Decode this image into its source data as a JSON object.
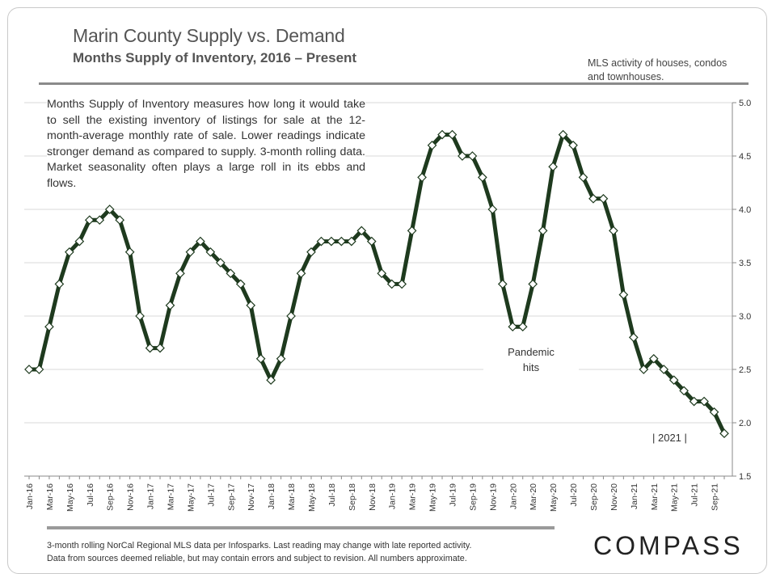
{
  "header": {
    "title": "Marin County Supply vs. Demand",
    "subtitle": "Months Supply of Inventory, 2016 – Present"
  },
  "mls_note": "MLS activity of houses, condos and townhouses.",
  "description": "Months Supply of Inventory measures how long it would take to sell the existing inventory of listings for sale at the 12-month-average monthly rate of sale. Lower readings indicate stronger demand as compared to supply. 3-month rolling data. Market seasonality often plays a large roll in its ebbs and flows.",
  "annotations": {
    "pandemic_line1": "Pandemic",
    "pandemic_line2": "hits",
    "year_marker": "|  2021  |"
  },
  "footnote": {
    "line1": "3-month rolling NorCal Regional MLS data per Infosparks. Last reading may change with late reported activity.",
    "line2": "Data from sources deemed reliable, but may contain errors and subject to revision. All numbers approximate."
  },
  "logo_text": "COMPASS",
  "colors": {
    "line": "#1e3a1e",
    "marker_fill": "#ffffff",
    "grid": "#d9d9d9",
    "text": "#333333"
  },
  "chart_data": {
    "type": "line",
    "title": "Marin County Supply vs. Demand",
    "subtitle": "Months Supply of Inventory, 2016 – Present",
    "ylim": [
      1.5,
      5.0
    ],
    "y_ticks": [
      "1.5",
      "2.0",
      "2.5",
      "3.0",
      "3.5",
      "4.0",
      "4.5",
      "5.0"
    ],
    "y_axis_side": "right",
    "grid": true,
    "x_tick_labels": [
      "Jan-16",
      "Mar-16",
      "May-16",
      "Jul-16",
      "Sep-16",
      "Nov-16",
      "Jan-17",
      "Mar-17",
      "May-17",
      "Jul-17",
      "Sep-17",
      "Nov-17",
      "Jan-18",
      "Mar-18",
      "May-18",
      "Jul-18",
      "Sep-18",
      "Nov-18",
      "Jan-19",
      "Mar-19",
      "May-19",
      "Jul-19",
      "Sep-19",
      "Nov-19",
      "Jan-20",
      "Mar-20",
      "May-20",
      "Jul-20",
      "Sep-20",
      "Nov-20",
      "Jan-21",
      "Mar-21",
      "May-21",
      "Jul-21",
      "Sep-21"
    ],
    "series": [
      {
        "values": [
          2.5,
          2.5,
          2.9,
          3.3,
          3.6,
          3.7,
          3.9,
          3.9,
          4.0,
          3.9,
          3.6,
          3.0,
          2.7,
          2.7,
          3.1,
          3.4,
          3.6,
          3.7,
          3.6,
          3.5,
          3.4,
          3.3,
          3.1,
          2.6,
          2.4,
          2.6,
          3.0,
          3.4,
          3.6,
          3.7,
          3.7,
          3.7,
          3.7,
          3.8,
          3.7,
          3.4,
          3.3,
          3.3,
          3.8,
          4.3,
          4.6,
          4.7,
          4.7,
          4.5,
          4.5,
          4.3,
          4.0,
          3.3,
          2.9,
          2.9,
          3.3,
          3.8,
          4.4,
          4.7,
          4.6,
          4.3,
          4.1,
          4.1,
          3.8,
          3.2,
          2.8,
          2.5,
          2.6,
          2.5,
          2.4,
          2.3,
          2.2,
          2.2,
          2.1,
          1.9
        ]
      }
    ]
  }
}
